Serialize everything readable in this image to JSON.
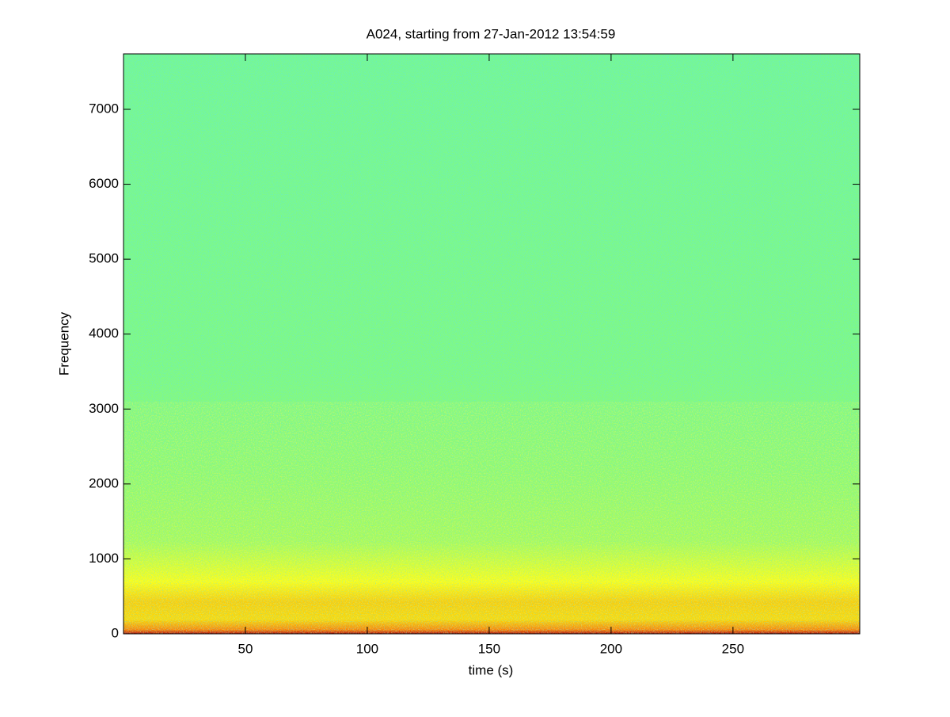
{
  "chart_data": {
    "type": "spectrogram",
    "title": "A024, starting from 27-Jan-2012 13:54:59",
    "x_label": "time (s)",
    "y_label": "Frequency",
    "xlim": [
      0,
      302
    ],
    "ylim": [
      0,
      7740
    ],
    "xticks": [
      50,
      100,
      150,
      200,
      250
    ],
    "yticks": [
      0,
      1000,
      2000,
      3000,
      4000,
      5000,
      6000,
      7000
    ],
    "colormap": "jet"
  }
}
